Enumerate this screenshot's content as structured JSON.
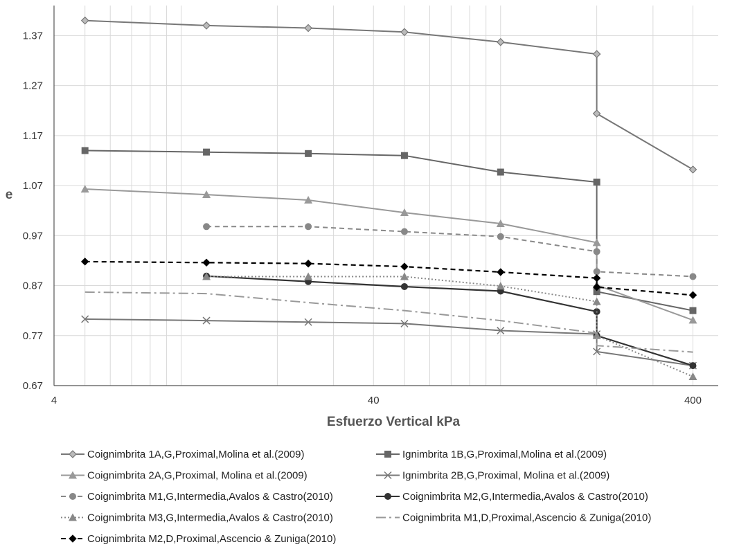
{
  "chart_data": {
    "type": "line",
    "title": "",
    "xlabel": "Esfuerzo Vertical  kPa",
    "ylabel": "e",
    "xscale": "log",
    "xlim": [
      4,
      480
    ],
    "ylim": [
      0.67,
      1.43
    ],
    "x_ticks": [
      4,
      40,
      400
    ],
    "x_tick_labels": [
      "4",
      "40",
      "400"
    ],
    "y_ticks": [
      0.67,
      0.77,
      0.87,
      0.97,
      1.07,
      1.17,
      1.27,
      1.37
    ],
    "y_tick_labels": [
      "0.67",
      "0.77",
      "0.87",
      "0.97",
      "1.07",
      "1.17",
      "1.27",
      "1.37"
    ],
    "grid": true,
    "legend_position": "bottom",
    "series": [
      {
        "name": "Coignimbrita 1A,G,Proximal,Molina et al.(2009)",
        "color": "#777777",
        "dash": "solid",
        "marker": "diamond-open",
        "points": [
          [
            5,
            1.4
          ],
          [
            12,
            1.39
          ],
          [
            25,
            1.385
          ],
          [
            50,
            1.377
          ],
          [
            100,
            1.357
          ],
          [
            200,
            1.333
          ],
          [
            200,
            1.214
          ],
          [
            400,
            1.102
          ]
        ]
      },
      {
        "name": "Ignimbrita 1B,G,Proximal,Molina et al.(2009)",
        "color": "#666666",
        "dash": "solid",
        "marker": "square",
        "points": [
          [
            5,
            1.14
          ],
          [
            12,
            1.137
          ],
          [
            25,
            1.134
          ],
          [
            50,
            1.13
          ],
          [
            100,
            1.097
          ],
          [
            200,
            1.077
          ],
          [
            200,
            0.858
          ],
          [
            400,
            0.82
          ]
        ]
      },
      {
        "name": "Coignimbrita 2A,G,Proximal, Molina et al.(2009)",
        "color": "#999999",
        "dash": "solid",
        "marker": "triangle",
        "points": [
          [
            5,
            1.063
          ],
          [
            12,
            1.052
          ],
          [
            25,
            1.041
          ],
          [
            50,
            1.016
          ],
          [
            100,
            0.994
          ],
          [
            200,
            0.956
          ],
          [
            200,
            0.871
          ],
          [
            400,
            0.801
          ]
        ]
      },
      {
        "name": "Ignimbrita 2B,G,Proximal, Molina et al.(2009)",
        "color": "#777777",
        "dash": "solid",
        "marker": "x",
        "points": [
          [
            5,
            0.803
          ],
          [
            12,
            0.8
          ],
          [
            25,
            0.797
          ],
          [
            50,
            0.794
          ],
          [
            100,
            0.78
          ],
          [
            200,
            0.773
          ],
          [
            200,
            0.738
          ],
          [
            400,
            0.71
          ]
        ]
      },
      {
        "name": "Coignimbrita M1,G,Intermedia,Avalos & Castro(2010)",
        "color": "#888888",
        "dash": "dash",
        "marker": "circle",
        "points": [
          [
            12,
            0.988
          ],
          [
            25,
            0.988
          ],
          [
            50,
            0.978
          ],
          [
            100,
            0.968
          ],
          [
            200,
            0.938
          ],
          [
            200,
            0.898
          ],
          [
            400,
            0.888
          ]
        ]
      },
      {
        "name": "Coignimbrita M2,G,Intermedia,Avalos & Castro(2010)",
        "color": "#333333",
        "dash": "solid",
        "marker": "circle",
        "points": [
          [
            12,
            0.889
          ],
          [
            25,
            0.878
          ],
          [
            50,
            0.868
          ],
          [
            100,
            0.859
          ],
          [
            200,
            0.818
          ],
          [
            200,
            0.77
          ],
          [
            400,
            0.71
          ]
        ]
      },
      {
        "name": "Coignimbrita M3,G,Intermedia,Avalos & Castro(2010)",
        "color": "#888888",
        "dash": "dot",
        "marker": "triangle",
        "points": [
          [
            12,
            0.888
          ],
          [
            25,
            0.888
          ],
          [
            50,
            0.888
          ],
          [
            100,
            0.869
          ],
          [
            200,
            0.838
          ],
          [
            200,
            0.77
          ],
          [
            400,
            0.688
          ]
        ]
      },
      {
        "name": "Coignimbrita M1,D,Proximal,Ascencio & Zuniga(2010)",
        "color": "#999999",
        "dash": "dashdot",
        "marker": "none",
        "points": [
          [
            5,
            0.857
          ],
          [
            12,
            0.854
          ],
          [
            25,
            0.836
          ],
          [
            50,
            0.82
          ],
          [
            100,
            0.8
          ],
          [
            200,
            0.775
          ],
          [
            200,
            0.75
          ],
          [
            400,
            0.737
          ]
        ]
      },
      {
        "name": "Coignimbrita M2,D,Proximal,Ascencio & Zuniga(2010)",
        "color": "#000000",
        "dash": "dash",
        "marker": "diamond",
        "points": [
          [
            5,
            0.918
          ],
          [
            12,
            0.916
          ],
          [
            25,
            0.914
          ],
          [
            50,
            0.908
          ],
          [
            100,
            0.897
          ],
          [
            200,
            0.885
          ],
          [
            200,
            0.867
          ],
          [
            400,
            0.851
          ]
        ]
      }
    ]
  }
}
